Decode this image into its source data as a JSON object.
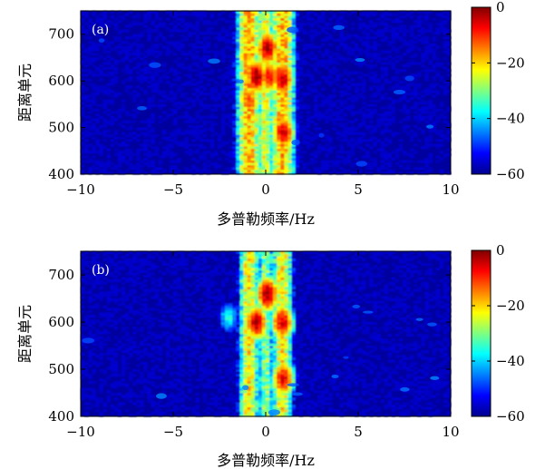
{
  "chart_data": [
    {
      "type": "heatmap",
      "panel_label": "(a)",
      "xlabel": "多普勒频率/Hz",
      "ylabel": "距离单元",
      "xlim": [
        -10,
        10
      ],
      "ylim": [
        400,
        750
      ],
      "xticks": [
        "−10",
        "−5",
        "0",
        "5",
        "10"
      ],
      "yticks": [
        "400",
        "500",
        "600",
        "700"
      ],
      "colorbar": {
        "range": [
          -60,
          0
        ],
        "ticks": [
          "0",
          "−20",
          "−40",
          "−60"
        ]
      },
      "features": {
        "bands": [
          {
            "center": -0.9,
            "width": 0.55,
            "level": -18
          },
          {
            "center": 0.0,
            "width": 0.45,
            "level": -25
          },
          {
            "center": 0.9,
            "width": 0.55,
            "level": -18
          }
        ],
        "hotspots": [
          {
            "x": -0.5,
            "y": 610,
            "level": -2
          },
          {
            "x": 0.1,
            "y": 670,
            "level": -3
          },
          {
            "x": 0.9,
            "y": 605,
            "level": -4
          },
          {
            "x": 0.95,
            "y": 490,
            "level": -5
          },
          {
            "x": -0.9,
            "y": 560,
            "level": -12
          },
          {
            "x": 0.2,
            "y": 610,
            "level": -8
          }
        ],
        "background_level": -60
      }
    },
    {
      "type": "heatmap",
      "panel_label": "(b)",
      "xlabel": "多普勒频率/Hz",
      "ylabel": "距离单元",
      "xlim": [
        -10,
        10
      ],
      "ylim": [
        400,
        750
      ],
      "xticks": [
        "−10",
        "−5",
        "0",
        "5",
        "10"
      ],
      "yticks": [
        "400",
        "500",
        "600",
        "700"
      ],
      "colorbar": {
        "range": [
          -60,
          0
        ],
        "ticks": [
          "0",
          "−20",
          "−40",
          "−60"
        ]
      },
      "features": {
        "bands": [
          {
            "center": -0.9,
            "width": 0.45,
            "level": -22
          },
          {
            "center": 0.0,
            "width": 0.4,
            "level": -30
          },
          {
            "center": 0.9,
            "width": 0.45,
            "level": -22
          }
        ],
        "hotspots": [
          {
            "x": -0.5,
            "y": 600,
            "level": -3
          },
          {
            "x": 0.1,
            "y": 660,
            "level": -2
          },
          {
            "x": 0.9,
            "y": 600,
            "level": -5
          },
          {
            "x": 0.95,
            "y": 480,
            "level": -6
          },
          {
            "x": -2.0,
            "y": 610,
            "level": -35
          }
        ],
        "background_level": -60
      }
    }
  ]
}
